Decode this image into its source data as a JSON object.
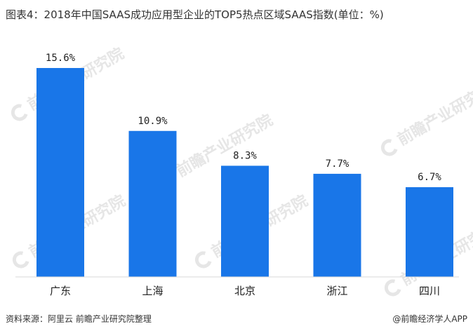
{
  "title": "图表4：2018年中国SAAS成功应用型企业的TOP5热点区域SAAS指数(单位：%)",
  "watermark_text": "前瞻产业研究院",
  "footer": {
    "source": "资料来源：阿里云 前瞻产业研究院整理",
    "brand": "@前瞻经济学人APP"
  },
  "colors": {
    "bar": "#1976e8",
    "axis": "#d9d9d9"
  },
  "chart_data": {
    "type": "bar",
    "categories": [
      "广东",
      "上海",
      "北京",
      "浙江",
      "四川"
    ],
    "values": [
      15.6,
      10.9,
      8.3,
      7.7,
      6.7
    ],
    "labels": [
      "15.6%",
      "10.9%",
      "8.3%",
      "7.7%",
      "6.7%"
    ],
    "title": "图表4：2018年中国SAAS成功应用型企业的TOP5热点区域SAAS指数(单位：%)",
    "xlabel": "",
    "ylabel": "",
    "ylim": [
      0,
      15.6
    ],
    "grid": false,
    "legend": "none"
  }
}
